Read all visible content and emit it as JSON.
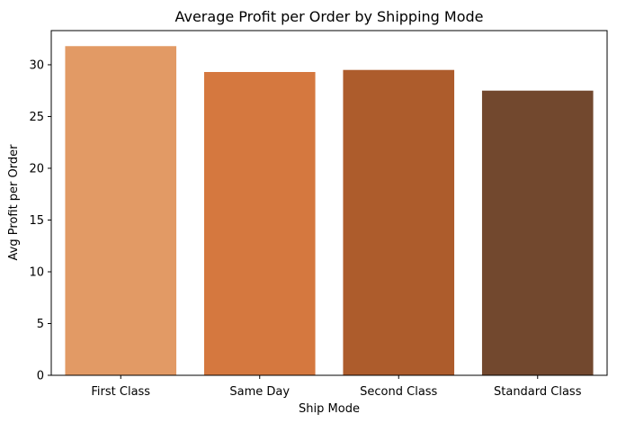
{
  "chart_data": {
    "type": "bar",
    "title": "Average Profit per Order by Shipping Mode",
    "xlabel": "Ship Mode",
    "ylabel": "Avg Profit per Order",
    "categories": [
      "First Class",
      "Same Day",
      "Second Class",
      "Standard Class"
    ],
    "values": [
      31.8,
      29.3,
      29.5,
      27.5
    ],
    "colors": [
      "#e29a65",
      "#d5783f",
      "#ad5c2c",
      "#72482e"
    ],
    "ylim": [
      0,
      33.3
    ],
    "yticks": [
      0,
      5,
      10,
      15,
      20,
      25,
      30
    ],
    "grid": false,
    "legend": "none"
  }
}
